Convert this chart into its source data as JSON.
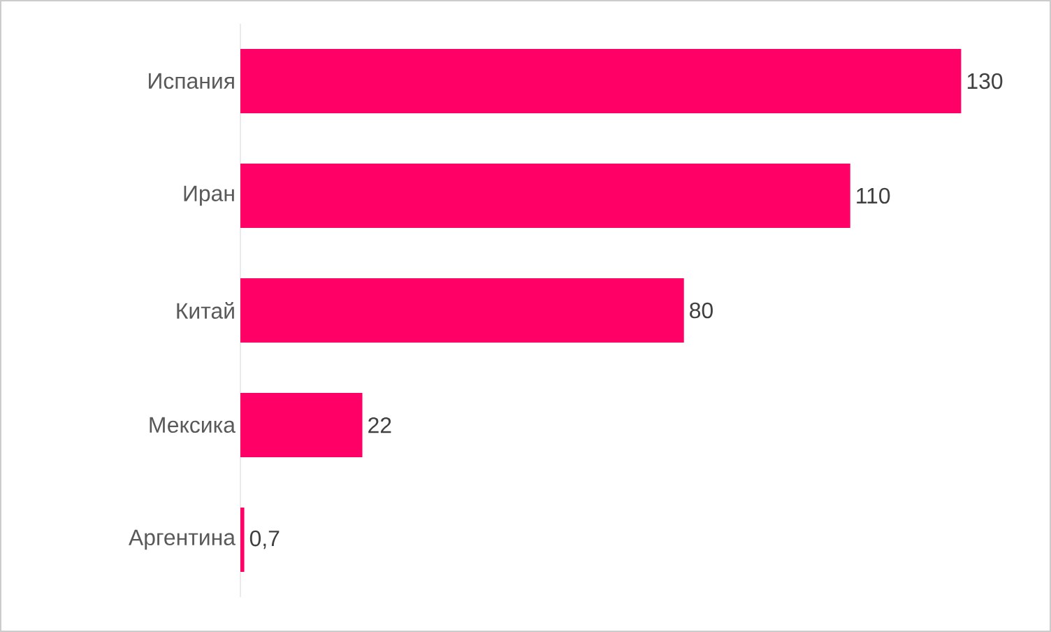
{
  "chart_data": {
    "type": "bar",
    "orientation": "horizontal",
    "categories": [
      "Испания",
      "Иран",
      "Китай",
      "Мексика",
      "Аргентина"
    ],
    "values": [
      130,
      110,
      80,
      22,
      0.7
    ],
    "value_labels": [
      "130",
      "110",
      "80",
      "22",
      "0,7"
    ],
    "color": "#ff0066"
  }
}
